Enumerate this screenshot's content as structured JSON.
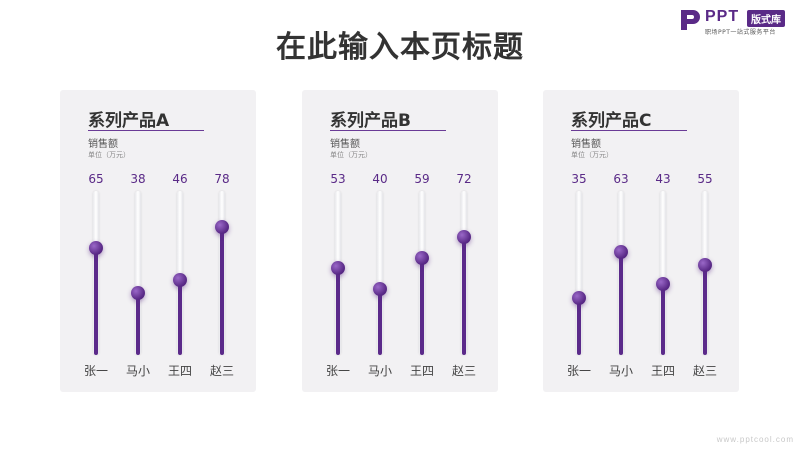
{
  "page": {
    "title": "在此输入本页标题",
    "watermark": "www.pptcool.com"
  },
  "logo": {
    "brand": "PPT",
    "badge": "版式库",
    "tagline": "职场PPT一站式服务平台",
    "color": "#5a2a87"
  },
  "colors": {
    "accent": "#5b2a8a",
    "value_text": "#5a2a87",
    "panel_bg": "#f2f1f3"
  },
  "chart_data": [
    {
      "type": "bar",
      "title": "系列产品A",
      "subtitle": "销售额",
      "unit": "单位（万元）",
      "categories": [
        "张一",
        "马小",
        "王四",
        "赵三"
      ],
      "values": [
        65,
        38,
        46,
        78
      ],
      "ylim": [
        0,
        100
      ]
    },
    {
      "type": "bar",
      "title": "系列产品B",
      "subtitle": "销售额",
      "unit": "单位（万元）",
      "categories": [
        "张一",
        "马小",
        "王四",
        "赵三"
      ],
      "values": [
        53,
        40,
        59,
        72
      ],
      "ylim": [
        0,
        100
      ]
    },
    {
      "type": "bar",
      "title": "系列产品C",
      "subtitle": "销售额",
      "unit": "单位（万元）",
      "categories": [
        "张一",
        "马小",
        "王四",
        "赵三"
      ],
      "values": [
        35,
        63,
        43,
        55
      ],
      "ylim": [
        0,
        100
      ]
    }
  ]
}
